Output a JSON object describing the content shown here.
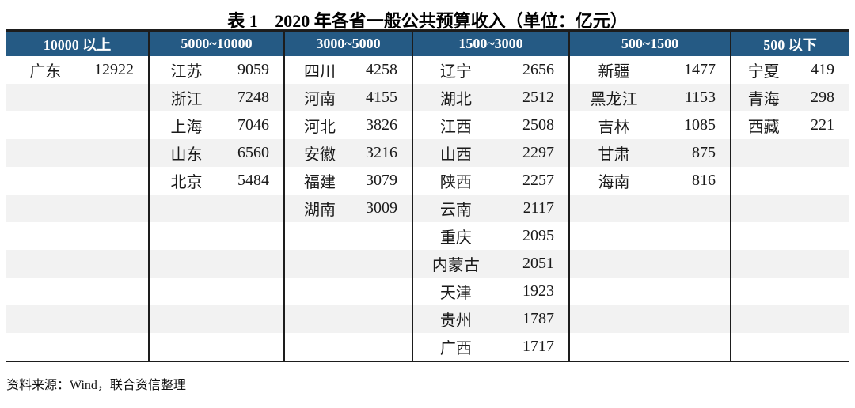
{
  "title": {
    "label": "表 1",
    "text": "2020 年各省一般公共预算收入（单位：亿元）"
  },
  "source_note": "资料来源：Wind，联合资信整理",
  "colors": {
    "header_bg": "#255a84",
    "header_text": "#ffffff",
    "row_stripe": "#f2f2f2",
    "border_dark": "#1d1d1d"
  },
  "chart_data": {
    "type": "table",
    "title": "表 1 2020 年各省一般公共预算收入（单位：亿元）",
    "unit": "亿元",
    "row_count": 11,
    "groups": [
      {
        "header": "10000 以上",
        "rows": [
          {
            "province": "广东",
            "value": 12922
          }
        ]
      },
      {
        "header": "5000~10000",
        "rows": [
          {
            "province": "江苏",
            "value": 9059
          },
          {
            "province": "浙江",
            "value": 7248
          },
          {
            "province": "上海",
            "value": 7046
          },
          {
            "province": "山东",
            "value": 6560
          },
          {
            "province": "北京",
            "value": 5484
          }
        ]
      },
      {
        "header": "3000~5000",
        "rows": [
          {
            "province": "四川",
            "value": 4258
          },
          {
            "province": "河南",
            "value": 4155
          },
          {
            "province": "河北",
            "value": 3826
          },
          {
            "province": "安徽",
            "value": 3216
          },
          {
            "province": "福建",
            "value": 3079
          },
          {
            "province": "湖南",
            "value": 3009
          }
        ]
      },
      {
        "header": "1500~3000",
        "rows": [
          {
            "province": "辽宁",
            "value": 2656
          },
          {
            "province": "湖北",
            "value": 2512
          },
          {
            "province": "江西",
            "value": 2508
          },
          {
            "province": "山西",
            "value": 2297
          },
          {
            "province": "陕西",
            "value": 2257
          },
          {
            "province": "云南",
            "value": 2117
          },
          {
            "province": "重庆",
            "value": 2095
          },
          {
            "province": "内蒙古",
            "value": 2051
          },
          {
            "province": "天津",
            "value": 1923
          },
          {
            "province": "贵州",
            "value": 1787
          },
          {
            "province": "广西",
            "value": 1717
          }
        ]
      },
      {
        "header": "500~1500",
        "rows": [
          {
            "province": "新疆",
            "value": 1477
          },
          {
            "province": "黑龙江",
            "value": 1153
          },
          {
            "province": "吉林",
            "value": 1085
          },
          {
            "province": "甘肃",
            "value": 875
          },
          {
            "province": "海南",
            "value": 816
          }
        ]
      },
      {
        "header": "500 以下",
        "rows": [
          {
            "province": "宁夏",
            "value": 419
          },
          {
            "province": "青海",
            "value": 298
          },
          {
            "province": "西藏",
            "value": 221
          }
        ]
      }
    ]
  }
}
